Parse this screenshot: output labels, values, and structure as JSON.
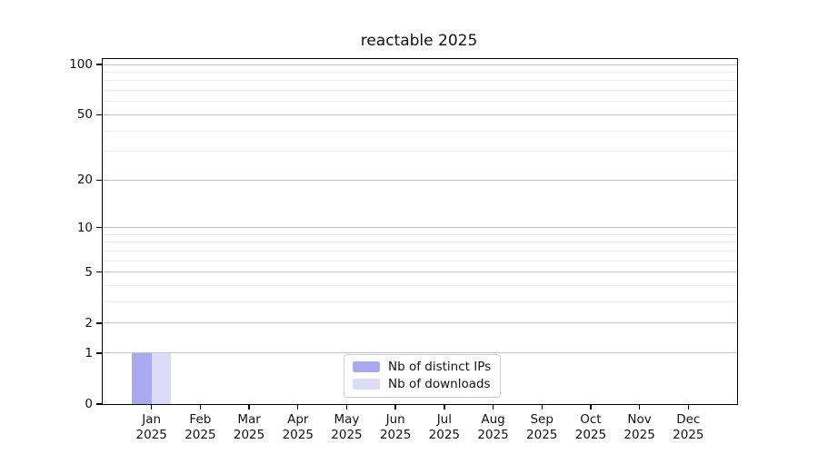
{
  "chart_data": {
    "type": "bar",
    "title": "reactable 2025",
    "x_year": "2025",
    "categories": [
      "Jan",
      "Feb",
      "Mar",
      "Apr",
      "May",
      "Jun",
      "Jul",
      "Aug",
      "Sep",
      "Oct",
      "Nov",
      "Dec"
    ],
    "series": [
      {
        "name": "Nb of distinct IPs",
        "color": "#a9a9f0",
        "values": [
          1,
          0,
          0,
          0,
          0,
          0,
          0,
          0,
          0,
          0,
          0,
          0
        ]
      },
      {
        "name": "Nb of downloads",
        "color": "#dcdcf8",
        "values": [
          1,
          0,
          0,
          0,
          0,
          0,
          0,
          0,
          0,
          0,
          0,
          0
        ]
      }
    ],
    "y_axis": {
      "scale": "log1p",
      "ticks": [
        0,
        1,
        2,
        5,
        10,
        20,
        50,
        100
      ],
      "minor_ticks": [
        3,
        4,
        6,
        7,
        8,
        9,
        30,
        40,
        60,
        70,
        80,
        90
      ],
      "max_tick": 100,
      "ylim": [
        0,
        108
      ]
    },
    "grid": "both",
    "legend_position": "lower center, inside plot",
    "colors": {
      "grid_major": "#c3c3c3",
      "grid_minor": "#ebebeb",
      "axis": "#000000",
      "text": "#111111"
    }
  }
}
